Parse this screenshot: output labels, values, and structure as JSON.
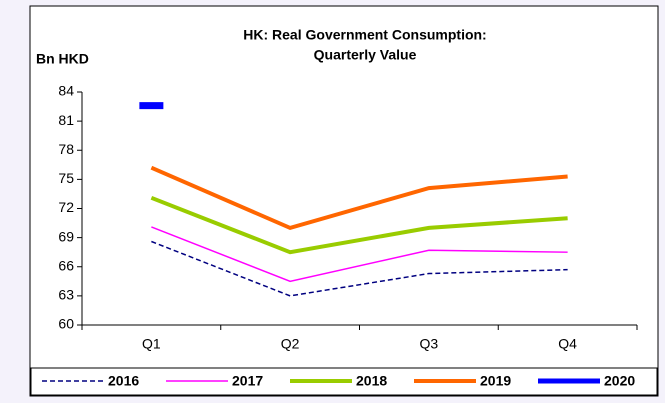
{
  "chart_data": {
    "type": "line",
    "title": [
      "HK: Real Government Consumption:",
      "Quarterly Value"
    ],
    "y_label": "Bn HKD",
    "categories": [
      "Q1",
      "Q2",
      "Q3",
      "Q4"
    ],
    "series": [
      {
        "name": "2016",
        "color": "#000080",
        "line_style": "dashed",
        "values": [
          68.6,
          63.0,
          65.3,
          65.7
        ]
      },
      {
        "name": "2017",
        "color": "#ff00ff",
        "line_style": "solid",
        "values": [
          70.1,
          64.5,
          67.7,
          67.5
        ]
      },
      {
        "name": "2018",
        "color": "#99cc00",
        "line_style": "solid",
        "values": [
          73.1,
          67.5,
          70.0,
          71.0
        ]
      },
      {
        "name": "2019",
        "color": "#ff6600",
        "line_style": "solid",
        "values": [
          76.2,
          70.0,
          74.1,
          75.3
        ]
      },
      {
        "name": "2020",
        "color": "#0000ff",
        "line_style": "solid",
        "values": [
          82.6,
          null,
          null,
          null
        ]
      }
    ],
    "ylim": [
      60,
      84
    ],
    "yticks": [
      60,
      63,
      66,
      69,
      72,
      75,
      78,
      81,
      84
    ],
    "grid": false,
    "legend": "bottom"
  }
}
